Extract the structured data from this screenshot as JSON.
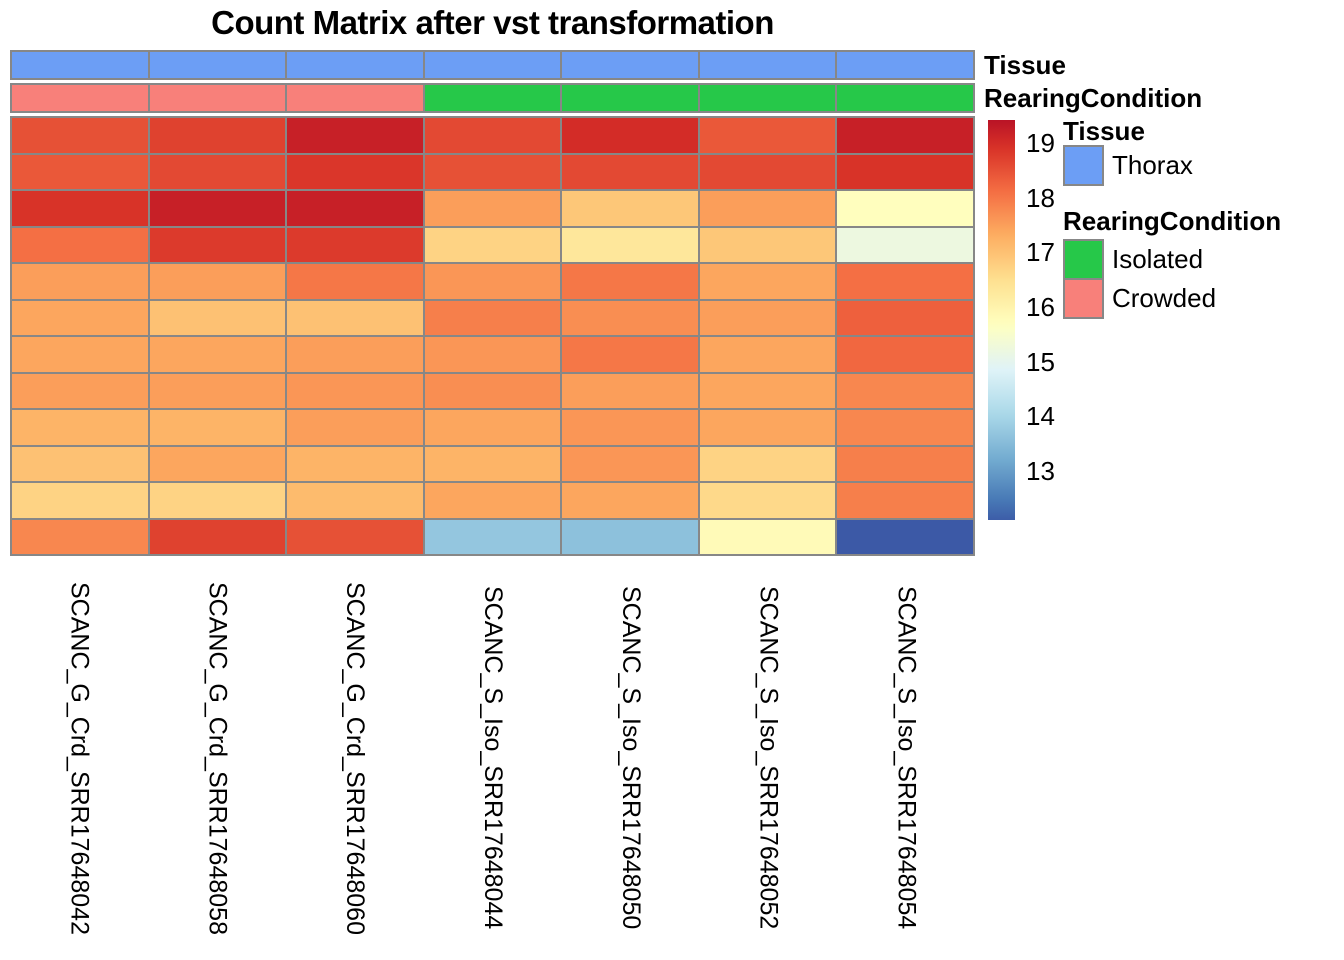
{
  "title": "Count Matrix after vst transformation",
  "annotation_track_labels": {
    "tissue": "Tissue",
    "rearing": "RearingCondition"
  },
  "legend": {
    "tissue_header": "Tissue",
    "tissue_items": [
      {
        "label": "Thorax",
        "color": "#6C9EF5"
      }
    ],
    "rearing_header": "RearingCondition",
    "rearing_items": [
      {
        "label": "Isolated",
        "color": "#26C849"
      },
      {
        "label": "Crowded",
        "color": "#F8807A"
      }
    ]
  },
  "chart_data": {
    "type": "heatmap",
    "title": "Count Matrix after vst transformation",
    "columns": [
      "SCANC_G_Crd_SRR17648042",
      "SCANC_G_Crd_SRR17648058",
      "SCANC_G_Crd_SRR17648060",
      "SCANC_S_Iso_SRR17648044",
      "SCANC_S_Iso_SRR17648050",
      "SCANC_S_Iso_SRR17648052",
      "SCANC_S_Iso_SRR17648054"
    ],
    "row_labels_shown": false,
    "n_rows": 12,
    "values": [
      [
        18.5,
        18.7,
        19.2,
        18.6,
        19.0,
        18.4,
        19.2
      ],
      [
        18.4,
        18.6,
        18.85,
        18.5,
        18.6,
        18.6,
        18.9
      ],
      [
        18.9,
        19.2,
        19.2,
        17.5,
        16.9,
        17.5,
        15.7
      ],
      [
        18.1,
        18.8,
        18.8,
        16.7,
        16.3,
        16.9,
        15.2
      ],
      [
        17.5,
        17.5,
        18.0,
        17.6,
        18.0,
        17.4,
        18.1
      ],
      [
        17.4,
        17.0,
        17.0,
        17.9,
        17.7,
        17.5,
        18.3
      ],
      [
        17.4,
        17.4,
        17.5,
        17.6,
        18.0,
        17.4,
        18.2
      ],
      [
        17.5,
        17.5,
        17.6,
        17.7,
        17.5,
        17.4,
        17.8
      ],
      [
        17.2,
        17.2,
        17.5,
        17.4,
        17.6,
        17.4,
        17.8
      ],
      [
        17.0,
        17.4,
        17.2,
        17.2,
        17.6,
        16.7,
        17.9
      ],
      [
        16.7,
        16.7,
        17.1,
        17.4,
        17.4,
        16.6,
        17.9
      ],
      [
        17.8,
        18.7,
        18.5,
        13.7,
        13.6,
        15.8,
        12.05
      ]
    ],
    "column_annotations": {
      "Tissue": [
        "Thorax",
        "Thorax",
        "Thorax",
        "Thorax",
        "Thorax",
        "Thorax",
        "Thorax"
      ],
      "RearingCondition": [
        "Crowded",
        "Crowded",
        "Crowded",
        "Isolated",
        "Isolated",
        "Isolated",
        "Isolated"
      ]
    },
    "annotation_colors": {
      "Thorax": "#6C9EF5",
      "Isolated": "#26C849",
      "Crowded": "#F8807A"
    },
    "scale": {
      "ticks": [
        19,
        18,
        17,
        16,
        15,
        14,
        13
      ],
      "bar_top_value": 19.42,
      "bar_bottom_value": 12.1,
      "colormap_name": "RdYlBu reversed",
      "colormap_domain": [
        11.6,
        19.75
      ],
      "colormap": [
        "#313695",
        "#4575b4",
        "#74add1",
        "#abd9e9",
        "#e0f3f8",
        "#ffffbf",
        "#fee090",
        "#fdae61",
        "#f46d43",
        "#d73027",
        "#a50026"
      ]
    },
    "grid_line_color": "#878787",
    "legend_position": "right"
  }
}
